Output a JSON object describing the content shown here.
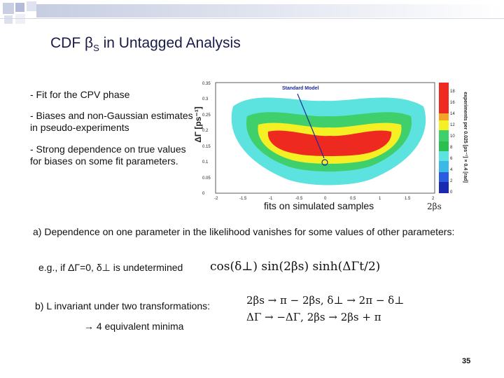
{
  "slide": {
    "title_prefix": "CDF β",
    "title_sub": "S",
    "title_suffix": " in Untagged Analysis",
    "bullets": [
      "- Fit for the CPV phase",
      "- Biases and non-Gaussian estimates in pseudo-experiments",
      "- Strong dependence on true values for biases on some fit parameters."
    ],
    "plot_caption": "fits on simulated samples",
    "point_a": "a) Dependence on one parameter in the likelihood vanishes for some values of other parameters:",
    "example_text": "e.g., if ΔΓ=0, δ⊥  is undetermined",
    "point_b": "b) L invariant under two transformations:",
    "minima_text": "→ 4 equivalent minima",
    "formula1": "cos(δ⊥) sin(2βs) sinh(ΔΓt/2)",
    "formula2": "2βs → π − 2βs,  δ⊥ → 2π − δ⊥",
    "formula3": "ΔΓ → −ΔΓ,  2βs → 2βs + π",
    "page_number": "35"
  },
  "plot": {
    "y_axis_label": "ΔΓ [ps⁻¹]",
    "x_axis_label": "2βs",
    "y_ticks": [
      "0",
      "0.05",
      "0.1",
      "0.15",
      "0.2",
      "0.25",
      "0.3",
      "0.35"
    ],
    "x_ticks": [
      "-2",
      "-1.5",
      "-1",
      "-0.5",
      "0",
      "0.5",
      "1",
      "1.5",
      "2"
    ],
    "annotation": "Standard Model",
    "z_label": "experiments per 0.025 [ps⁻¹] × 0.4 [rad]",
    "z_ticks": [
      "0",
      "2",
      "4",
      "6",
      "8",
      "10",
      "12",
      "14",
      "16",
      "18"
    ],
    "contour_colors": [
      "#5de3df",
      "#3fcf6b",
      "#f4f023",
      "#ee2a20"
    ]
  }
}
